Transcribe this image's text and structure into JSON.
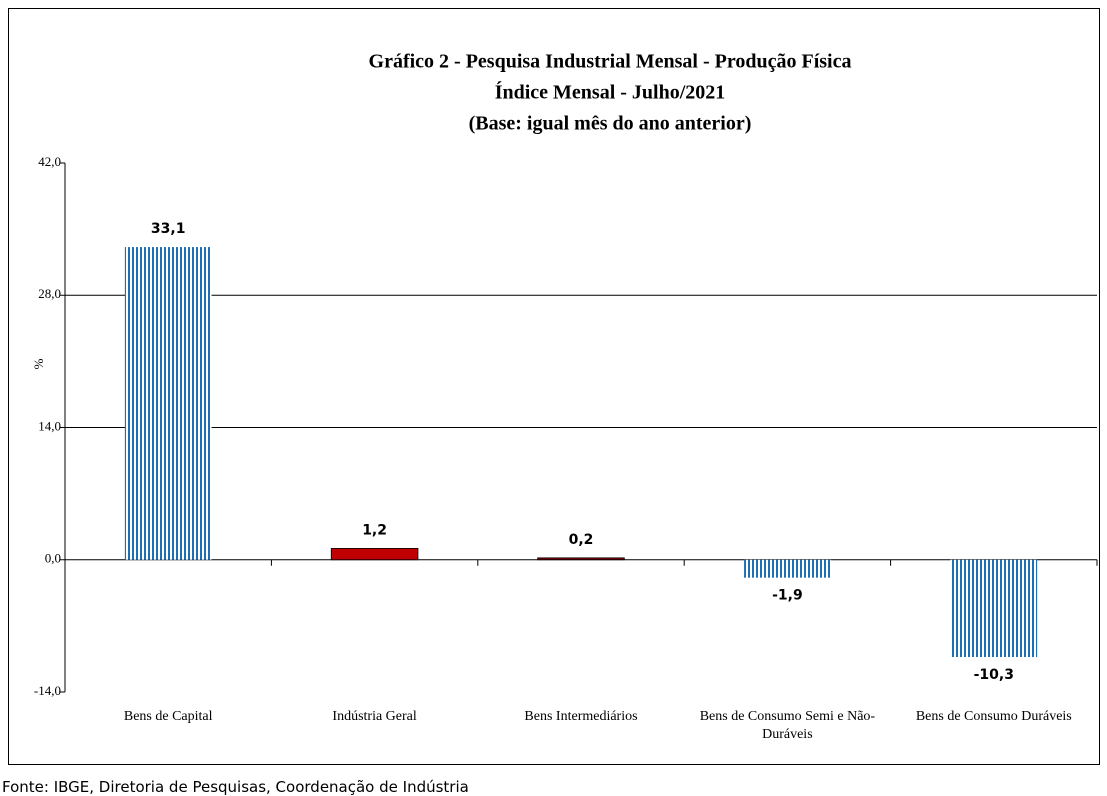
{
  "chart_data": {
    "type": "bar",
    "title": "Gráfico 2 - Pesquisa Industrial Mensal - Produção Física",
    "subtitle": [
      "Índice Mensal - Julho/2021",
      "(Base: igual mês do ano anterior)"
    ],
    "y_label": "%",
    "categories": [
      "Bens de Capital",
      "Indústria Geral",
      "Bens Intermediários",
      "Bens de Consumo Semi e Não-Duráveis",
      "Bens de Consumo Duráveis"
    ],
    "values": [
      33.1,
      1.2,
      0.2,
      -1.9,
      -10.3
    ],
    "value_labels": [
      "33,1",
      "1,2",
      "0,2",
      "-1,9",
      "-10,3"
    ],
    "colors": [
      "#1f6fb5",
      "#c00000",
      "#800000",
      "#1f6fb5",
      "#1f6fb5"
    ],
    "patterns": [
      "stripes",
      "solid",
      "solid",
      "stripes",
      "stripes"
    ],
    "ylim": [
      -14,
      42
    ],
    "yticks": [
      {
        "value": -14,
        "label": "-14,0"
      },
      {
        "value": 0,
        "label": "0,0"
      },
      {
        "value": 14,
        "label": "14,0"
      },
      {
        "value": 28,
        "label": "28,0"
      },
      {
        "value": 42,
        "label": "42,0"
      }
    ],
    "grid": true,
    "source": "Fonte: IBGE, Diretoria de Pesquisas, Coordenação de Indústria"
  }
}
